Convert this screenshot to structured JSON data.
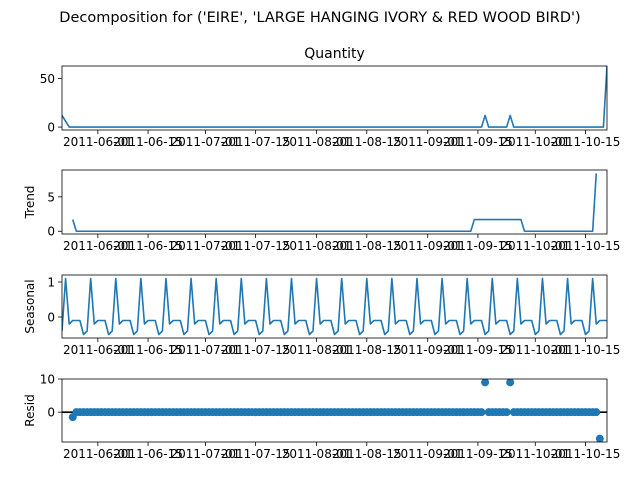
{
  "figure": {
    "suptitle": "Decomposition for ('EIRE', 'LARGE HANGING IVORY & RED WOOD BIRD')"
  },
  "colors": {
    "series": "#1f77b4",
    "axis": "#000000",
    "background": "#ffffff"
  },
  "chart_data": [
    {
      "type": "line",
      "title": "Quantity",
      "ylabel": "",
      "x_ticks": [
        "2011-06-01",
        "2011-06-15",
        "2011-07-01",
        "2011-07-15",
        "2011-08-01",
        "2011-08-15",
        "2011-09-01",
        "2011-09-15",
        "2011-10-01",
        "2011-10-15"
      ],
      "ylim": [
        -3,
        63
      ],
      "yticks": [
        0,
        50
      ],
      "series": [
        {
          "x": [
            "2011-05-22",
            "2011-05-24",
            "2011-09-16",
            "2011-09-17",
            "2011-09-18",
            "2011-09-23",
            "2011-09-24",
            "2011-09-25",
            "2011-10-20",
            "2011-10-21"
          ],
          "y": [
            12,
            0,
            0,
            12,
            0,
            0,
            12,
            0,
            0,
            63
          ]
        }
      ]
    },
    {
      "type": "line",
      "title": "",
      "ylabel": "Trend",
      "x_ticks": [
        "2011-06-01",
        "2011-06-15",
        "2011-07-01",
        "2011-07-15",
        "2011-08-01",
        "2011-08-15",
        "2011-09-01",
        "2011-09-15",
        "2011-10-01",
        "2011-10-15"
      ],
      "ylim": [
        -0.4,
        8.9
      ],
      "yticks": [
        0,
        5
      ],
      "series": [
        {
          "x": [
            "2011-05-25",
            "2011-05-26",
            "2011-09-13",
            "2011-09-14",
            "2011-09-27",
            "2011-09-28",
            "2011-10-17",
            "2011-10-18"
          ],
          "y": [
            1.7,
            0,
            0,
            1.7,
            1.7,
            0,
            0,
            8.4
          ]
        }
      ]
    },
    {
      "type": "line",
      "title": "",
      "ylabel": "Seasonal",
      "x_ticks": [
        "2011-06-01",
        "2011-06-15",
        "2011-07-01",
        "2011-07-15",
        "2011-08-01",
        "2011-08-15",
        "2011-09-01",
        "2011-09-15",
        "2011-10-01",
        "2011-10-15"
      ],
      "ylim": [
        -0.6,
        1.2
      ],
      "yticks": [
        0,
        1
      ],
      "period_days": 7,
      "weekly_pattern": [
        -0.4,
        1.1,
        -0.2,
        -0.1,
        -0.1,
        -0.1,
        -0.5
      ],
      "start": "2011-05-22",
      "end": "2011-10-21",
      "series": []
    },
    {
      "type": "scatter",
      "title": "",
      "ylabel": "Resid",
      "x_ticks": [
        "2011-06-01",
        "2011-06-15",
        "2011-07-01",
        "2011-07-15",
        "2011-08-01",
        "2011-08-15",
        "2011-09-01",
        "2011-09-15",
        "2011-10-01",
        "2011-10-15"
      ],
      "ylim": [
        -9,
        10
      ],
      "yticks": [
        0,
        10
      ],
      "zero_line": true,
      "start": "2011-05-25",
      "end": "2011-10-18",
      "baseline": 0,
      "special_points": {
        "2011-05-25": -1.5,
        "2011-09-17": 9,
        "2011-09-24": 9,
        "2011-10-19": -8
      },
      "series": []
    }
  ]
}
